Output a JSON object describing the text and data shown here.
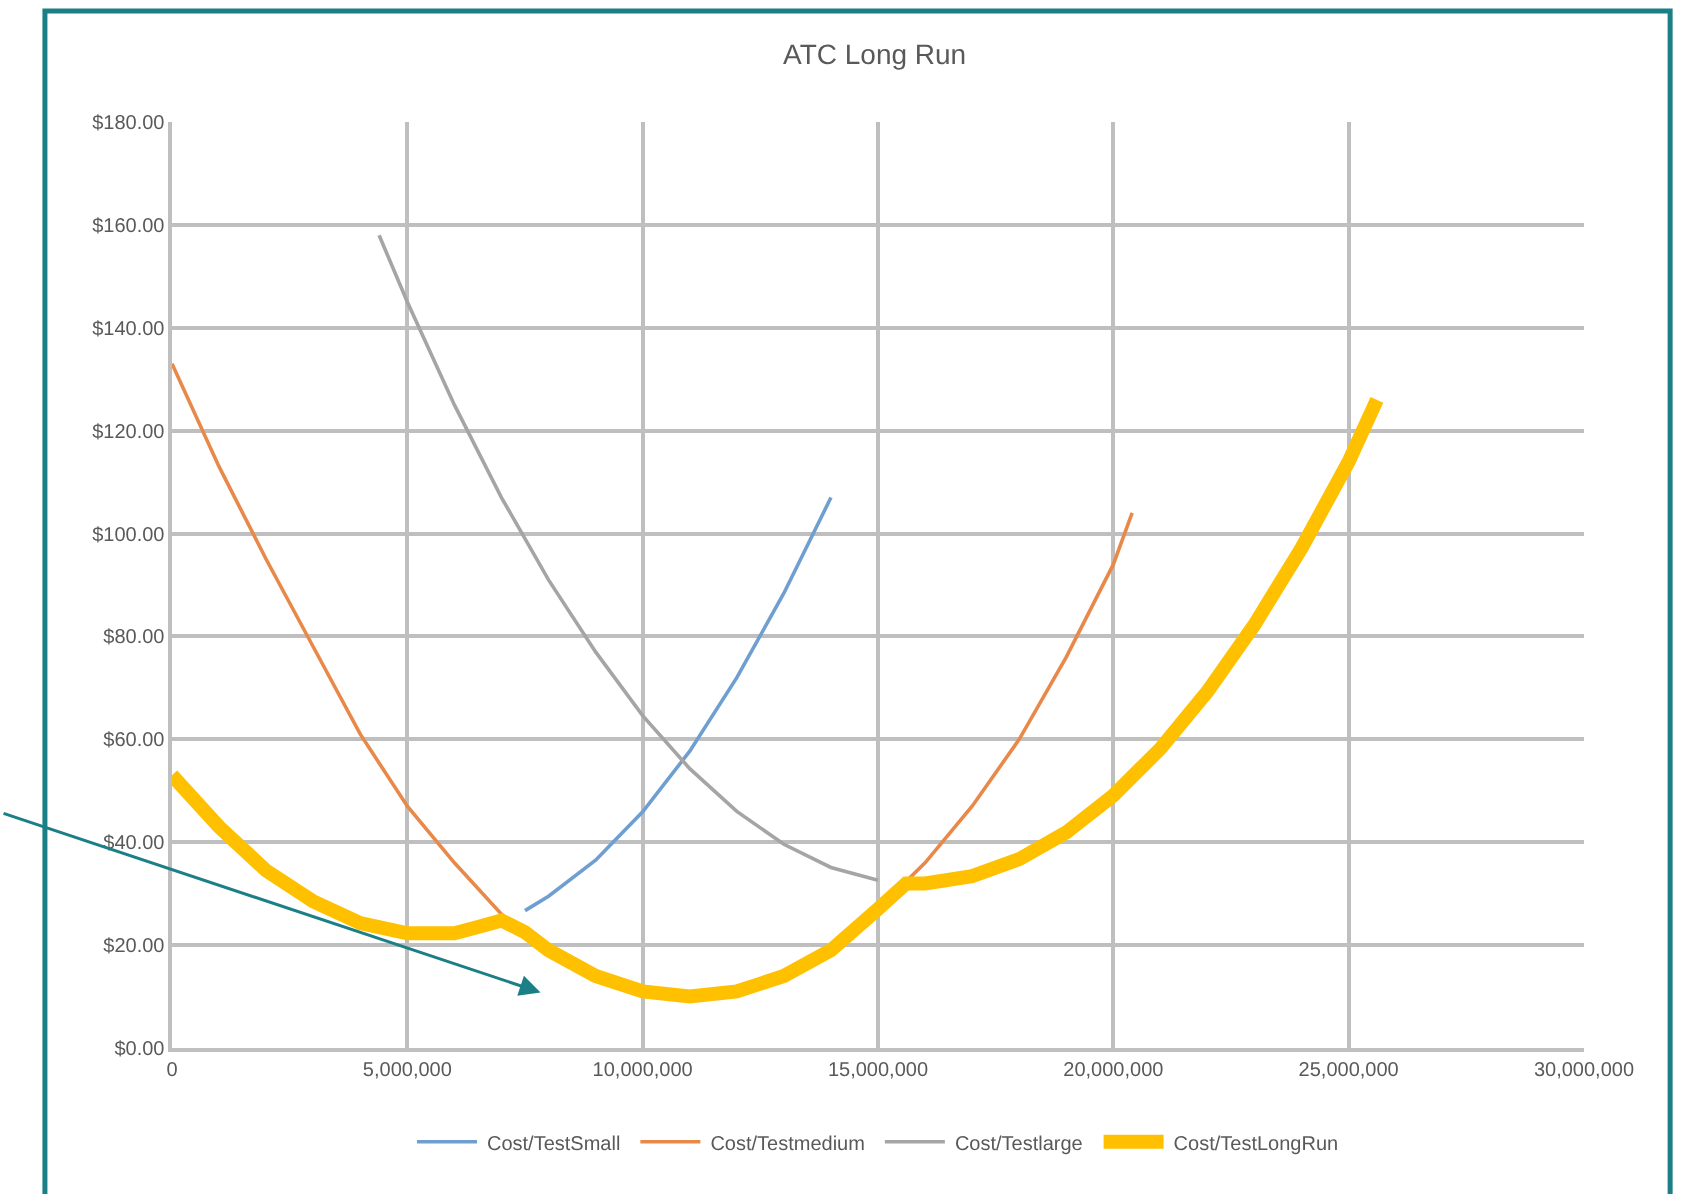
{
  "chart_data": {
    "type": "line",
    "title": "ATC Long Run",
    "xlim": [
      0,
      30000000
    ],
    "xticks": [
      0,
      {
        "value": 5000000,
        "label": "5,000,000"
      },
      {
        "value": 10000000,
        "label": "10,000,000"
      },
      {
        "value": 15000000,
        "label": "15,000,000"
      },
      {
        "value": 20000000,
        "label": "20,000,000"
      },
      {
        "value": 25000000,
        "label": "25,000,000"
      },
      {
        "value": 30000000,
        "label": "30,000,000"
      }
    ],
    "ylim": [
      0,
      180
    ],
    "yticks": [
      {
        "value": 0,
        "label": "$0.00"
      },
      {
        "value": 20,
        "label": "$20.00"
      },
      {
        "value": 40,
        "label": "$40.00"
      },
      {
        "value": 60,
        "label": "$60.00"
      },
      {
        "value": 80,
        "label": "$80.00"
      },
      {
        "value": 100,
        "label": "$100.00"
      },
      {
        "value": 120,
        "label": "$120.00"
      },
      {
        "value": 140,
        "label": "$140.00"
      },
      {
        "value": 160,
        "label": "$160.00"
      },
      {
        "value": 180,
        "label": "$180.00"
      }
    ],
    "grid": true,
    "legend": "bottom",
    "marker": "none",
    "line_style": "solid",
    "series": [
      {
        "name": "Cost/TestSmall",
        "color": "#6f9fd0",
        "x": [
          7500000,
          8000000,
          9000000,
          10000000,
          11000000,
          12000000,
          13000000,
          14000000
        ],
        "values": [
          26.7,
          29.5,
          36.5,
          45.9,
          57.7,
          72,
          88.4,
          107
        ]
      },
      {
        "name": "Cost/Testmedium",
        "color": "#e8894a",
        "x": [
          0,
          1000000,
          2000000,
          3000000,
          4000000,
          5000000,
          6000000,
          7000000,
          8000000,
          9000000,
          10000000,
          11000000,
          12000000,
          13000000,
          14000000,
          15000000,
          16000000,
          17000000,
          18000000,
          19000000,
          20000000,
          20400000
        ],
        "values": [
          133,
          113,
          95,
          78,
          61,
          47,
          36,
          26,
          19,
          14,
          11,
          10,
          11,
          14,
          19,
          27,
          36,
          47,
          60,
          76,
          94,
          104
        ]
      },
      {
        "name": "Cost/Testlarge",
        "color": "#a5a5a5",
        "x": [
          4400000,
          5000000,
          6000000,
          7000000,
          8000000,
          9000000,
          10000000,
          11000000,
          12000000,
          13000000,
          14000000,
          15000000
        ],
        "values": [
          158,
          145,
          125,
          107,
          91,
          77,
          64.6,
          54.3,
          46,
          39.6,
          35.1,
          32.6
        ]
      },
      {
        "name": "Cost/TestLongRun",
        "color": "#ffc000",
        "x": [
          0,
          1000000,
          2000000,
          3000000,
          4000000,
          5000000,
          6000000,
          6500000,
          7000000,
          7500000,
          8000000,
          9000000,
          10000000,
          11000000,
          12000000,
          13000000,
          14000000,
          15000000,
          15600000,
          16000000,
          17000000,
          18000000,
          19000000,
          20000000,
          21000000,
          22000000,
          23000000,
          24000000,
          25000000,
          25600000
        ],
        "values": [
          53,
          43,
          34.5,
          28.5,
          24.3,
          22.3,
          22.3,
          23.5,
          24.8,
          22.5,
          19,
          14,
          11,
          10,
          11,
          14,
          19,
          27,
          32,
          32,
          33.4,
          36.7,
          41.9,
          49.1,
          58.2,
          69.3,
          82.3,
          97.2,
          114,
          126
        ]
      }
    ]
  }
}
